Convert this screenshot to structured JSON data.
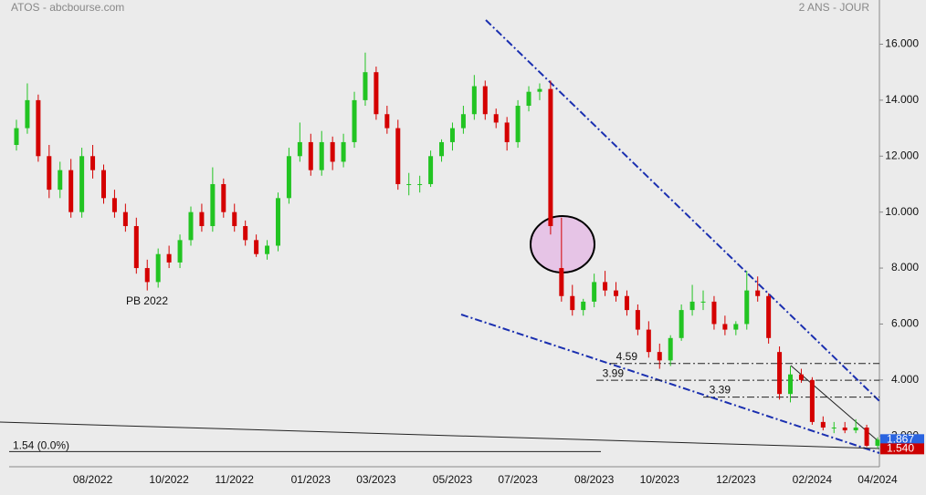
{
  "chart_data": {
    "type": "candlestick",
    "title": "ATOS - abcbourse.com",
    "subtitle": "2 ANS - JOUR",
    "annotation": "PB 2022",
    "categories": [
      null,
      null,
      null,
      null,
      null,
      null,
      null,
      "08/2022",
      null,
      null,
      null,
      null,
      null,
      null,
      "10/2022",
      null,
      null,
      null,
      null,
      null,
      "11/2022",
      null,
      null,
      null,
      null,
      null,
      null,
      "01/2023",
      null,
      null,
      null,
      null,
      null,
      "03/2023",
      null,
      null,
      null,
      null,
      null,
      null,
      "05/2023",
      null,
      null,
      null,
      null,
      null,
      "07/2023",
      null,
      null,
      null,
      null,
      null,
      null,
      "08/2023",
      null,
      null,
      null,
      null,
      null,
      "10/2023",
      null,
      null,
      null,
      null,
      null,
      null,
      "12/2023",
      null,
      null,
      null,
      null,
      null,
      null,
      "02/2024",
      null,
      null,
      null,
      null,
      null,
      "04/2024"
    ],
    "open": [
      12.4,
      13.0,
      14.0,
      12.0,
      10.8,
      11.5,
      10.0,
      12.0,
      11.5,
      10.5,
      10.0,
      9.5,
      8.0,
      7.5,
      8.5,
      8.2,
      9.0,
      10.0,
      9.5,
      11.0,
      10.0,
      9.5,
      9.0,
      8.5,
      8.8,
      10.5,
      12.0,
      12.5,
      11.5,
      12.5,
      11.8,
      12.5,
      14.0,
      15.0,
      13.5,
      13.0,
      11.0,
      11.0,
      11.0,
      12.0,
      12.5,
      13.0,
      13.5,
      14.5,
      13.5,
      13.2,
      12.5,
      13.8,
      14.3,
      14.4,
      8.0,
      7.0,
      6.5,
      6.8,
      7.5,
      7.2,
      7.0,
      6.5,
      5.8,
      5.0,
      4.7,
      5.5,
      6.5,
      6.8,
      6.8,
      6.0,
      5.8,
      6.0,
      7.2,
      7.0,
      5.0,
      3.5,
      4.2,
      4.0,
      2.5,
      2.3,
      2.3,
      2.2,
      2.3,
      1.65
    ],
    "high": [
      13.3,
      14.6,
      14.2,
      12.4,
      11.8,
      11.9,
      12.3,
      12.4,
      11.7,
      10.8,
      10.3,
      9.8,
      8.3,
      8.7,
      8.8,
      9.2,
      10.2,
      10.3,
      11.6,
      11.2,
      10.3,
      9.7,
      9.2,
      9.0,
      10.7,
      12.3,
      13.2,
      12.8,
      12.9,
      12.7,
      12.8,
      14.3,
      15.7,
      15.2,
      13.8,
      13.3,
      11.4,
      11.3,
      12.2,
      12.6,
      13.2,
      13.8,
      14.9,
      14.7,
      13.7,
      13.4,
      14.0,
      14.5,
      14.6,
      14.7,
      9.8,
      7.4,
      6.9,
      7.8,
      7.9,
      7.5,
      7.2,
      6.7,
      6.1,
      5.3,
      5.6,
      6.7,
      7.4,
      7.2,
      7.0,
      6.3,
      6.1,
      7.9,
      7.7,
      7.1,
      5.2,
      4.5,
      4.4,
      4.1,
      2.7,
      2.5,
      2.5,
      2.6,
      2.4,
      1.95
    ],
    "low": [
      12.2,
      12.8,
      11.8,
      10.5,
      10.5,
      9.8,
      9.8,
      11.2,
      10.3,
      9.8,
      9.3,
      7.8,
      7.2,
      7.3,
      8.0,
      8.0,
      8.8,
      9.3,
      9.3,
      9.8,
      9.3,
      8.8,
      8.4,
      8.3,
      8.6,
      10.3,
      11.8,
      11.3,
      11.3,
      11.5,
      11.6,
      12.3,
      13.8,
      13.3,
      12.8,
      10.8,
      10.6,
      10.7,
      10.9,
      11.8,
      12.2,
      12.8,
      13.3,
      13.3,
      13.0,
      12.2,
      12.3,
      13.6,
      14.0,
      9.2,
      6.8,
      6.3,
      6.3,
      6.6,
      7.0,
      6.8,
      6.3,
      5.6,
      4.8,
      4.4,
      4.5,
      5.4,
      6.3,
      6.5,
      5.8,
      5.6,
      5.6,
      5.8,
      6.8,
      5.3,
      3.3,
      3.2,
      3.9,
      2.4,
      2.2,
      2.1,
      2.1,
      2.1,
      1.6,
      1.55
    ],
    "close": [
      13.0,
      14.0,
      12.0,
      10.8,
      11.5,
      10.0,
      12.0,
      11.5,
      10.5,
      10.0,
      9.5,
      8.0,
      7.5,
      8.5,
      8.2,
      9.0,
      10.0,
      9.5,
      11.0,
      10.0,
      9.5,
      9.0,
      8.5,
      8.8,
      10.5,
      12.0,
      12.5,
      11.5,
      12.5,
      11.8,
      12.5,
      14.0,
      15.0,
      13.5,
      13.0,
      11.0,
      11.0,
      11.0,
      12.0,
      12.5,
      13.0,
      13.5,
      14.5,
      13.5,
      13.2,
      12.5,
      13.8,
      14.3,
      14.4,
      9.5,
      7.0,
      6.5,
      6.8,
      7.5,
      7.2,
      7.0,
      6.5,
      5.8,
      5.0,
      4.7,
      5.5,
      6.5,
      6.8,
      6.8,
      6.0,
      5.8,
      6.0,
      7.2,
      7.0,
      5.5,
      3.5,
      4.2,
      4.0,
      2.5,
      2.3,
      2.3,
      2.2,
      2.3,
      1.65,
      1.867
    ],
    "up_color": "#22c422",
    "down_color": "#d40000",
    "levels": [
      4.59,
      3.99,
      3.39
    ],
    "support": {
      "value": 1.54,
      "label": "1.54  (0.0%)"
    },
    "badges": [
      {
        "value": 1.867,
        "color": "#2a64e0"
      },
      {
        "value": 1.54,
        "label": "1.540",
        "color": "#cc0000"
      }
    ],
    "ylim": [
      0.9,
      17.58
    ],
    "yticks": [
      {
        "value": 2,
        "label": "2.000"
      },
      {
        "value": 4,
        "label": "4.000"
      },
      {
        "value": 6,
        "label": "6.000"
      },
      {
        "value": 8,
        "label": "8.000"
      },
      {
        "value": 10,
        "label": "10.000"
      },
      {
        "value": 12,
        "label": "12.000"
      },
      {
        "value": 14,
        "label": "14.000"
      },
      {
        "value": 16,
        "label": "16.000"
      }
    ]
  }
}
